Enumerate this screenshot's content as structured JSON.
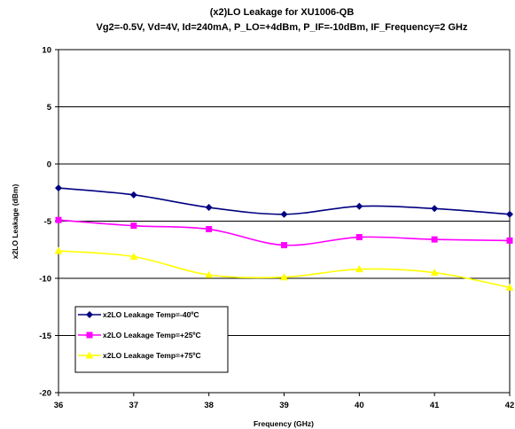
{
  "chart_data": {
    "type": "line",
    "title": "(x2)LO Leakage for XU1006-QB",
    "subtitle": "Vg2=-0.5V, Vd=4V, Id=240mA, P_LO=+4dBm,  P_IF=-10dBm, IF_Frequency=2 GHz",
    "xlabel": "Frequency (GHz)",
    "ylabel": "x2LO Leakage (dBm)",
    "xlim": [
      36,
      42
    ],
    "ylim": [
      -20,
      10
    ],
    "x_ticks": [
      "36",
      "37",
      "38",
      "39",
      "40",
      "41",
      "42"
    ],
    "y_ticks": [
      "10",
      "5",
      "0",
      "-5",
      "-10",
      "-15",
      "-20"
    ],
    "grid": "horizontal",
    "legend_position": "bottom-left",
    "x": [
      36,
      37,
      38,
      39,
      40,
      41,
      42
    ],
    "series": [
      {
        "name": "x2LO Leakage Temp=-40ºC",
        "color": "#000080",
        "marker": "diamond",
        "values": [
          -2.1,
          -2.7,
          -3.8,
          -4.4,
          -3.7,
          -3.9,
          -4.4
        ]
      },
      {
        "name": "x2LO Leakage Temp=+25ºC",
        "color": "#ff00ff",
        "marker": "square",
        "values": [
          -4.9,
          -5.4,
          -5.7,
          -7.1,
          -6.4,
          -6.6,
          -6.7
        ]
      },
      {
        "name": "x2LO Leakage Temp=+75ºC",
        "color": "#ffff00",
        "marker": "triangle",
        "values": [
          -7.6,
          -8.1,
          -9.7,
          -9.9,
          -9.2,
          -9.5,
          -10.8
        ]
      }
    ]
  }
}
